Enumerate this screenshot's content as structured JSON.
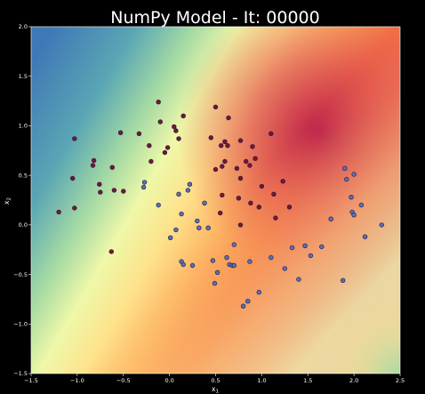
{
  "chart_data": {
    "type": "scatter",
    "title": "NumPy Model - It: 00000",
    "xlabel": "x",
    "xlabel_sub": "1",
    "ylabel": "x",
    "ylabel_sub": "2",
    "xlim": [
      -1.5,
      2.5
    ],
    "ylim": [
      -1.5,
      2.0
    ],
    "xticks": [
      -1.5,
      -1.0,
      -0.5,
      0.0,
      0.5,
      1.0,
      1.5,
      2.0,
      2.5
    ],
    "xtick_labels": [
      "−1.5",
      "−1.0",
      "−0.5",
      "0.0",
      "0.5",
      "1.0",
      "1.5",
      "2.0",
      "2.5"
    ],
    "yticks": [
      -1.5,
      -1.0,
      -0.5,
      0.0,
      0.5,
      1.0,
      1.5,
      2.0
    ],
    "ytick_labels": [
      "−1.5",
      "−1.0",
      "−0.5",
      "0.0",
      "0.5",
      "1.0",
      "1.5",
      "2.0"
    ],
    "grid": false,
    "background": "filled contour of model output (Spectral colormap)",
    "colors": {
      "class_0": "#7a1530",
      "class_1": "#5c6fb3",
      "marker_edge": "#1a1a4a",
      "page_background": "#000000",
      "text": "#ffffff"
    },
    "series": [
      {
        "values": [
          {
            "x": -1.2,
            "y": 0.13
          },
          {
            "x": -1.03,
            "y": 0.87
          },
          {
            "x": -1.05,
            "y": 0.47
          },
          {
            "x": -1.03,
            "y": 0.17
          },
          {
            "x": -0.83,
            "y": 0.6
          },
          {
            "x": -0.82,
            "y": 0.65
          },
          {
            "x": -0.76,
            "y": 0.41
          },
          {
            "x": -0.75,
            "y": 0.33
          },
          {
            "x": -0.62,
            "y": 0.58
          },
          {
            "x": -0.6,
            "y": 0.35
          },
          {
            "x": -0.53,
            "y": 0.93
          },
          {
            "x": -0.5,
            "y": 0.34
          },
          {
            "x": -0.33,
            "y": 0.92
          },
          {
            "x": -0.22,
            "y": 0.8
          },
          {
            "x": -0.2,
            "y": 0.64
          },
          {
            "x": -0.12,
            "y": 1.24
          },
          {
            "x": -0.1,
            "y": 1.04
          },
          {
            "x": -0.05,
            "y": 0.73
          },
          {
            "x": -0.02,
            "y": 0.78
          },
          {
            "x": 0.05,
            "y": 0.99
          },
          {
            "x": 0.07,
            "y": 0.95
          },
          {
            "x": 0.1,
            "y": 0.87
          },
          {
            "x": 0.15,
            "y": 1.1
          },
          {
            "x": 0.45,
            "y": 0.88
          },
          {
            "x": 0.5,
            "y": 1.19
          },
          {
            "x": 0.5,
            "y": 0.56
          },
          {
            "x": 0.56,
            "y": 0.8
          },
          {
            "x": 0.57,
            "y": 0.59
          },
          {
            "x": 0.6,
            "y": 0.84
          },
          {
            "x": 0.6,
            "y": 0.64
          },
          {
            "x": 0.64,
            "y": 1.08
          },
          {
            "x": 0.63,
            "y": 0.8
          },
          {
            "x": 0.73,
            "y": 0.57
          },
          {
            "x": 0.77,
            "y": 0.85
          },
          {
            "x": 0.77,
            "y": 0.47
          },
          {
            "x": 0.83,
            "y": 0.64
          },
          {
            "x": 0.87,
            "y": 0.6
          },
          {
            "x": 0.9,
            "y": 0.79
          },
          {
            "x": 0.93,
            "y": 0.67
          },
          {
            "x": 1.0,
            "y": 0.39
          },
          {
            "x": 1.1,
            "y": 0.92
          },
          {
            "x": 1.13,
            "y": 0.31
          },
          {
            "x": 1.23,
            "y": 0.44
          },
          {
            "x": 1.3,
            "y": 0.18
          },
          {
            "x": 0.57,
            "y": 0.3
          },
          {
            "x": 0.75,
            "y": 0.27
          },
          {
            "x": 0.88,
            "y": 0.22
          },
          {
            "x": 0.97,
            "y": 0.18
          },
          {
            "x": 1.15,
            "y": 0.07
          },
          {
            "x": 0.55,
            "y": 0.12
          },
          {
            "x": 0.77,
            "y": 0.0
          },
          {
            "x": -0.63,
            "y": -0.27
          }
        ]
      },
      {
        "values": [
          {
            "x": -0.28,
            "y": 0.38
          },
          {
            "x": -0.27,
            "y": 0.43
          },
          {
            "x": -0.12,
            "y": 0.2
          },
          {
            "x": 0.01,
            "y": -0.13
          },
          {
            "x": 0.07,
            "y": -0.05
          },
          {
            "x": 0.1,
            "y": 0.31
          },
          {
            "x": 0.13,
            "y": 0.11
          },
          {
            "x": 0.13,
            "y": -0.37
          },
          {
            "x": 0.15,
            "y": -0.4
          },
          {
            "x": 0.2,
            "y": 0.35
          },
          {
            "x": 0.22,
            "y": 0.41
          },
          {
            "x": 0.25,
            "y": -0.41
          },
          {
            "x": 0.3,
            "y": 0.04
          },
          {
            "x": 0.32,
            "y": -0.03
          },
          {
            "x": 0.38,
            "y": 0.22
          },
          {
            "x": 0.42,
            "y": -0.03
          },
          {
            "x": 0.47,
            "y": -0.36
          },
          {
            "x": 0.49,
            "y": -0.59
          },
          {
            "x": 0.52,
            "y": -0.48
          },
          {
            "x": 0.62,
            "y": -0.33
          },
          {
            "x": 0.65,
            "y": -0.4
          },
          {
            "x": 0.68,
            "y": -0.41
          },
          {
            "x": 0.7,
            "y": -0.41
          },
          {
            "x": 0.7,
            "y": -0.2
          },
          {
            "x": 0.8,
            "y": -0.82
          },
          {
            "x": 0.85,
            "y": -0.77
          },
          {
            "x": 0.87,
            "y": -0.37
          },
          {
            "x": 0.97,
            "y": -0.68
          },
          {
            "x": 1.1,
            "y": -0.33
          },
          {
            "x": 1.25,
            "y": -0.44
          },
          {
            "x": 1.33,
            "y": -0.23
          },
          {
            "x": 1.4,
            "y": -0.55
          },
          {
            "x": 1.47,
            "y": -0.21
          },
          {
            "x": 1.53,
            "y": -0.31
          },
          {
            "x": 1.65,
            "y": -0.22
          },
          {
            "x": 1.75,
            "y": 0.06
          },
          {
            "x": 1.88,
            "y": -0.56
          },
          {
            "x": 1.9,
            "y": 0.57
          },
          {
            "x": 1.92,
            "y": 0.46
          },
          {
            "x": 1.97,
            "y": 0.28
          },
          {
            "x": 1.98,
            "y": 0.13
          },
          {
            "x": 2.0,
            "y": 0.51
          },
          {
            "x": 2.0,
            "y": 0.1
          },
          {
            "x": 2.08,
            "y": 0.2
          },
          {
            "x": 2.12,
            "y": -0.12
          },
          {
            "x": 2.3,
            "y": 0.0
          }
        ]
      }
    ]
  }
}
